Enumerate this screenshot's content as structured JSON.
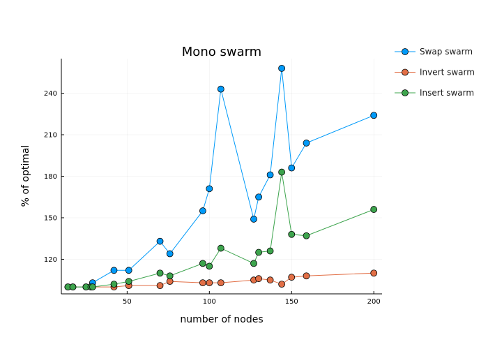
{
  "chart_data": {
    "type": "line",
    "title": "Mono swarm",
    "xlabel": "number of nodes",
    "ylabel": "% of optimal",
    "xlim": [
      10,
      205
    ],
    "ylim": [
      95,
      265
    ],
    "xticks": [
      50,
      100,
      150,
      200
    ],
    "yticks": [
      120,
      150,
      180,
      210,
      240
    ],
    "grid": true,
    "legend_position": "right-outside",
    "series": [
      {
        "name": "Swap swarm",
        "color": "#009af9",
        "x": [
          14,
          17,
          25,
          28,
          29,
          42,
          51,
          70,
          76,
          96,
          100,
          107,
          127,
          130,
          137,
          144,
          150,
          159,
          200
        ],
        "y": [
          100,
          100,
          100,
          100,
          103,
          112,
          112,
          133,
          124,
          155,
          171,
          243,
          149,
          165,
          181,
          258,
          186,
          204,
          224
        ]
      },
      {
        "name": "Invert swarm",
        "color": "#e26f46",
        "x": [
          14,
          17,
          25,
          28,
          29,
          42,
          51,
          70,
          76,
          96,
          100,
          107,
          127,
          130,
          137,
          144,
          150,
          159,
          200
        ],
        "y": [
          100,
          100,
          100,
          100,
          100,
          100,
          101,
          101,
          104,
          103,
          103,
          103,
          105,
          106,
          105,
          102,
          107,
          108,
          110
        ]
      },
      {
        "name": "Insert swarm",
        "color": "#3da44d",
        "x": [
          14,
          17,
          25,
          28,
          29,
          42,
          51,
          70,
          76,
          96,
          100,
          107,
          127,
          130,
          137,
          144,
          150,
          159,
          200
        ],
        "y": [
          100,
          100,
          100,
          100,
          100,
          102,
          104,
          110,
          108,
          117,
          115,
          128,
          117,
          125,
          126,
          183,
          138,
          137,
          156
        ]
      }
    ]
  }
}
